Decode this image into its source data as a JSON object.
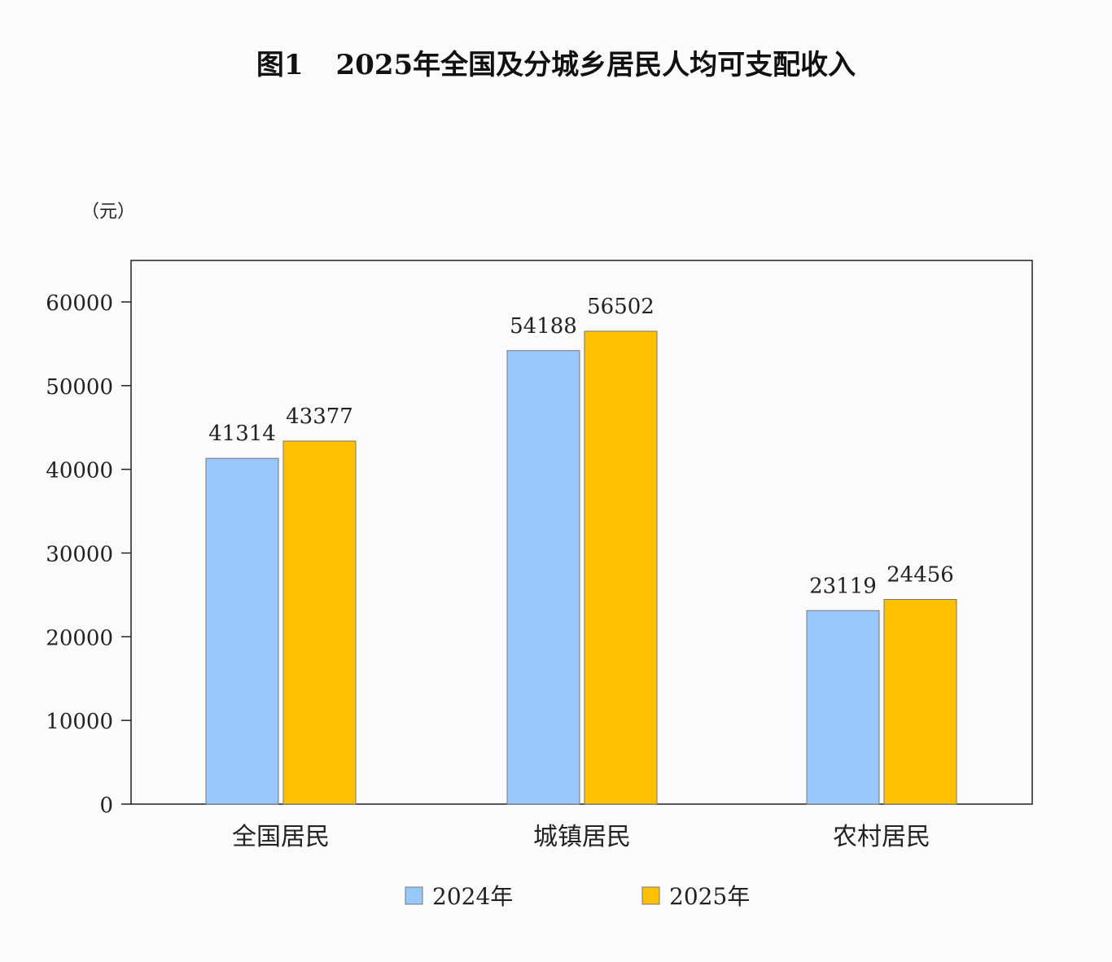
{
  "chart_data": {
    "type": "bar",
    "title_number": "图1",
    "title": "2025年全国及分城乡居民人均可支配收入",
    "ylabel": "（元）",
    "xlabel": "",
    "categories": [
      "全国居民",
      "城镇居民",
      "农村居民"
    ],
    "series": [
      {
        "name": "2024年",
        "values": [
          41314,
          54188,
          23119
        ],
        "color": "#99c8fc"
      },
      {
        "name": "2025年",
        "values": [
          43377,
          56502,
          24456
        ],
        "color": "#ffc000"
      }
    ],
    "ylim": [
      0,
      65000
    ],
    "yticks": [
      "0",
      "10000",
      "20000",
      "30000",
      "40000",
      "50000",
      "60000"
    ],
    "grid": false,
    "legend_position": "bottom"
  }
}
